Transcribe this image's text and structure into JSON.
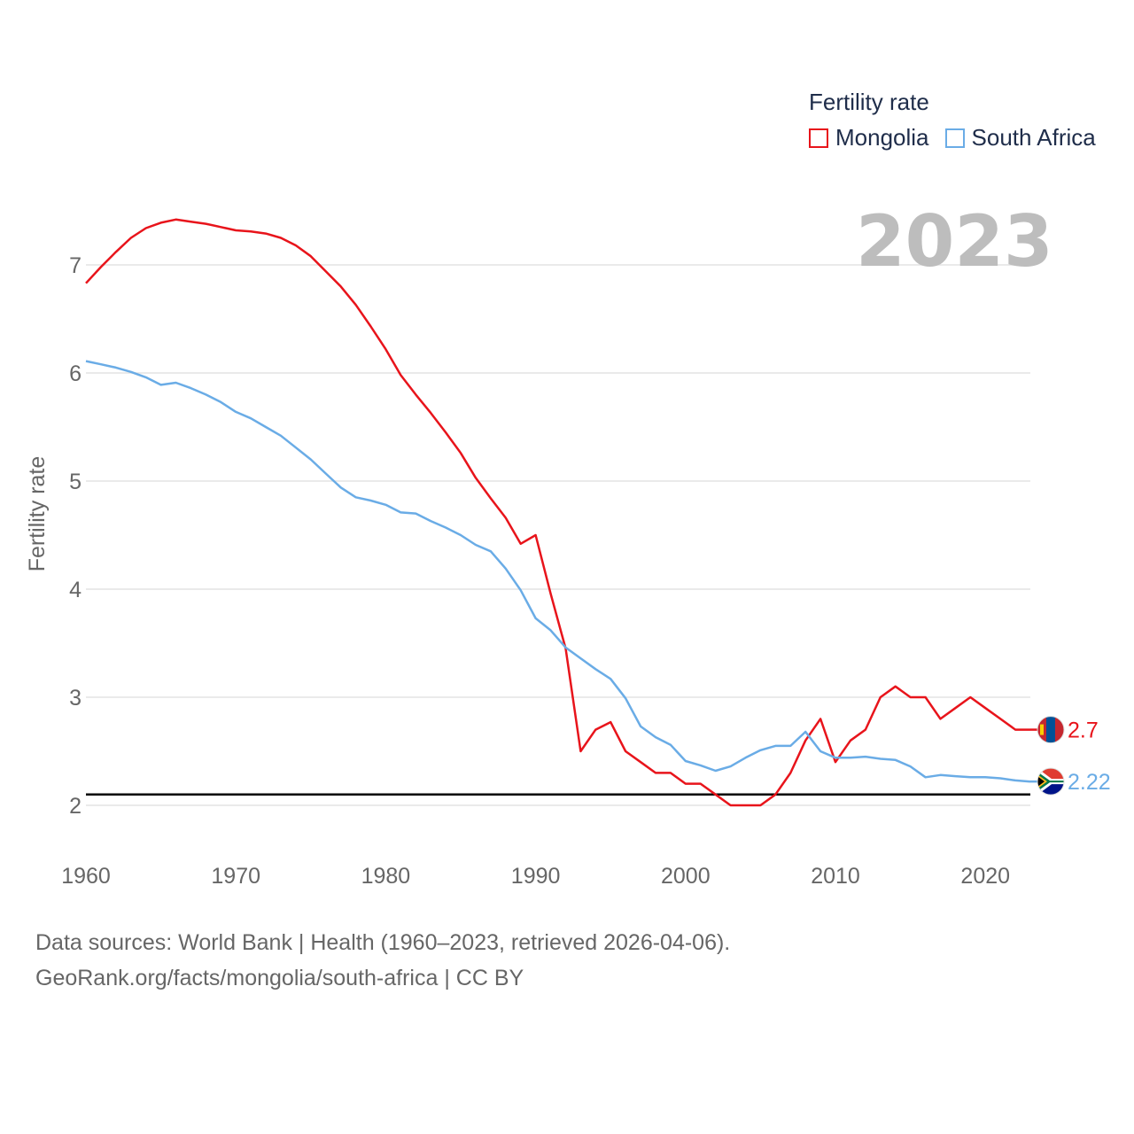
{
  "chart_data": {
    "type": "line",
    "title": "2023",
    "ylabel": "Fertility rate",
    "xlabel": "",
    "legend_title": "Fertility rate",
    "legend_position": "top-right",
    "xlim": [
      1960,
      2023
    ],
    "ylim": [
      2,
      7.5
    ],
    "x_ticks": [
      1960,
      1970,
      1980,
      1990,
      2000,
      2010,
      2020
    ],
    "y_ticks": [
      2,
      3,
      4,
      5,
      6,
      7
    ],
    "reference_line": 2.1,
    "x": [
      1960,
      1961,
      1962,
      1963,
      1964,
      1965,
      1966,
      1967,
      1968,
      1969,
      1970,
      1971,
      1972,
      1973,
      1974,
      1975,
      1976,
      1977,
      1978,
      1979,
      1980,
      1981,
      1982,
      1983,
      1984,
      1985,
      1986,
      1987,
      1988,
      1989,
      1990,
      1991,
      1992,
      1993,
      1994,
      1995,
      1996,
      1997,
      1998,
      1999,
      2000,
      2001,
      2002,
      2003,
      2004,
      2005,
      2006,
      2007,
      2008,
      2009,
      2010,
      2011,
      2012,
      2013,
      2014,
      2015,
      2016,
      2017,
      2018,
      2019,
      2020,
      2021,
      2022,
      2023
    ],
    "series": [
      {
        "name": "Mongolia",
        "color": "#e8141b",
        "end_label": "2.7",
        "values": [
          6.83,
          6.98,
          7.12,
          7.25,
          7.34,
          7.39,
          7.42,
          7.4,
          7.38,
          7.35,
          7.32,
          7.31,
          7.29,
          7.25,
          7.18,
          7.08,
          6.94,
          6.8,
          6.63,
          6.43,
          6.22,
          5.98,
          5.8,
          5.63,
          5.45,
          5.26,
          5.03,
          4.84,
          4.66,
          4.42,
          4.5,
          3.96,
          3.45,
          2.5,
          2.7,
          2.77,
          2.5,
          2.4,
          2.3,
          2.3,
          2.2,
          2.2,
          2.1,
          2.0,
          2.0,
          2.0,
          2.1,
          2.3,
          2.6,
          2.8,
          2.4,
          2.6,
          2.7,
          3.0,
          3.1,
          3.0,
          3.0,
          2.8,
          2.9,
          3.0,
          2.9,
          2.8,
          2.7,
          2.7
        ]
      },
      {
        "name": "South Africa",
        "color": "#6aace6",
        "end_label": "2.22",
        "values": [
          6.11,
          6.08,
          6.05,
          6.01,
          5.96,
          5.89,
          5.91,
          5.86,
          5.8,
          5.73,
          5.64,
          5.58,
          5.5,
          5.42,
          5.31,
          5.2,
          5.07,
          4.94,
          4.85,
          4.82,
          4.78,
          4.71,
          4.7,
          4.63,
          4.57,
          4.5,
          4.41,
          4.35,
          4.19,
          3.99,
          3.73,
          3.62,
          3.46,
          3.36,
          3.26,
          3.17,
          2.99,
          2.73,
          2.63,
          2.56,
          2.41,
          2.37,
          2.32,
          2.36,
          2.44,
          2.51,
          2.55,
          2.55,
          2.68,
          2.5,
          2.44,
          2.44,
          2.45,
          2.43,
          2.42,
          2.36,
          2.26,
          2.28,
          2.27,
          2.26,
          2.26,
          2.25,
          2.23,
          2.22
        ]
      }
    ]
  },
  "footer": {
    "line1": "Data sources: World Bank | Health (1960–2023, retrieved 2026-04-06).",
    "line2": "GeoRank.org/facts/mongolia/south-africa | CC BY"
  },
  "flags": {
    "mongolia": "mongolia-flag-icon",
    "south_africa": "south-africa-flag-icon"
  }
}
